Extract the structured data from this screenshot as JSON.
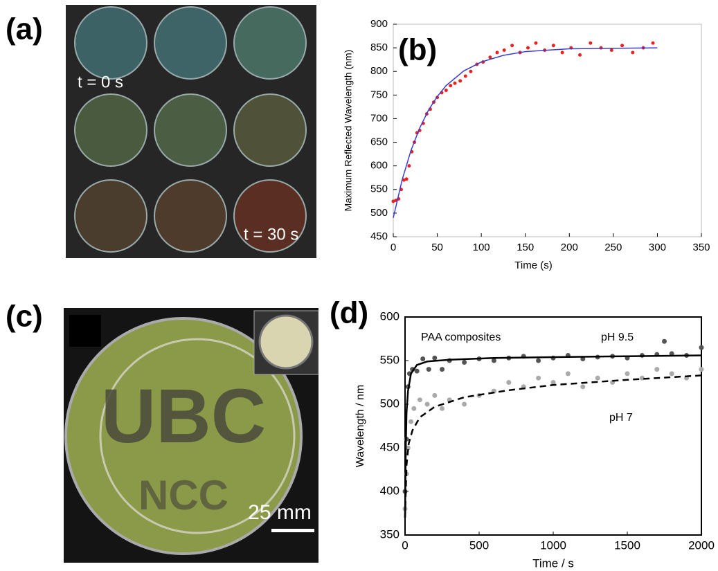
{
  "labels": {
    "a": "(a)",
    "b": "(b)",
    "c": "(c)",
    "d": "(d)"
  },
  "photo_a": {
    "start": "t = 0 s",
    "end": "t = 30 s"
  },
  "photo_c": {
    "line1": "UBC",
    "line2": "NCC",
    "scale": "25 mm"
  },
  "chart_data": [
    {
      "type": "scatter",
      "xlabel": "Time (s)",
      "ylabel": "Maximum Reflected Wavelength (nm)",
      "xlim": [
        0,
        350
      ],
      "xticks": [
        0,
        50,
        100,
        150,
        200,
        250,
        300,
        350
      ],
      "ylim": [
        450,
        900
      ],
      "yticks": [
        450,
        500,
        550,
        600,
        650,
        700,
        750,
        800,
        850,
        900
      ],
      "grid": false,
      "series": [
        {
          "color": "#e8231f",
          "mode": "markers",
          "x": [
            0,
            3,
            6,
            9,
            12,
            15,
            18,
            21,
            24,
            27,
            30,
            34,
            38,
            42,
            46,
            50,
            55,
            60,
            65,
            70,
            76,
            82,
            88,
            95,
            102,
            110,
            118,
            126,
            135,
            144,
            153,
            162,
            172,
            182,
            192,
            202,
            212,
            224,
            236,
            248,
            260,
            272,
            284,
            295
          ],
          "values": [
            525,
            527,
            530,
            550,
            570,
            572,
            600,
            630,
            650,
            670,
            675,
            690,
            710,
            720,
            735,
            745,
            755,
            760,
            770,
            775,
            780,
            790,
            800,
            815,
            820,
            830,
            840,
            845,
            855,
            840,
            850,
            860,
            845,
            855,
            840,
            850,
            835,
            860,
            850,
            845,
            855,
            840,
            850,
            860
          ]
        },
        {
          "color": "#3b3bd4",
          "mode": "line",
          "dash": false,
          "x": [
            0,
            10,
            20,
            30,
            40,
            50,
            60,
            80,
            100,
            125,
            150,
            175,
            200,
            250,
            300
          ],
          "values": [
            490,
            570,
            632,
            680,
            718,
            747,
            770,
            801,
            820,
            834,
            842,
            845,
            848,
            849,
            850
          ]
        }
      ]
    },
    {
      "type": "scatter",
      "xlabel": "Time / s",
      "ylabel": "Wavelength / nm",
      "xlim": [
        0,
        2000
      ],
      "xticks": [
        0,
        500,
        1000,
        1500,
        2000
      ],
      "ylim": [
        350,
        600
      ],
      "yticks": [
        350,
        400,
        450,
        500,
        550,
        600
      ],
      "grid": false,
      "annotations": [
        "PAA composites",
        "pH 9.5",
        "pH 7"
      ],
      "series": [
        {
          "color": "#555555",
          "mode": "markers",
          "x": [
            0,
            10,
            20,
            30,
            50,
            80,
            120,
            160,
            200,
            250,
            300,
            400,
            500,
            600,
            700,
            800,
            900,
            1000,
            1100,
            1200,
            1300,
            1400,
            1500,
            1600,
            1700,
            1750,
            1800,
            1900,
            2000
          ],
          "values": [
            400,
            460,
            520,
            535,
            540,
            538,
            552,
            540,
            553,
            540,
            550,
            548,
            552,
            550,
            553,
            555,
            550,
            553,
            556,
            552,
            554,
            555,
            553,
            556,
            557,
            572,
            558,
            556,
            565
          ]
        },
        {
          "color": "#aaaaaa",
          "mode": "markers",
          "x": [
            0,
            10,
            20,
            40,
            60,
            100,
            150,
            200,
            250,
            300,
            400,
            500,
            600,
            700,
            800,
            900,
            1000,
            1100,
            1200,
            1300,
            1400,
            1500,
            1600,
            1700,
            1800,
            1900,
            2000
          ],
          "values": [
            380,
            420,
            450,
            480,
            495,
            505,
            500,
            510,
            495,
            505,
            500,
            510,
            515,
            525,
            520,
            530,
            525,
            535,
            520,
            530,
            525,
            535,
            530,
            540,
            535,
            530,
            540
          ]
        },
        {
          "color": "#000000",
          "mode": "line",
          "dash": false,
          "x": [
            0,
            5,
            10,
            20,
            40,
            80,
            150,
            300,
            600,
            1000,
            1500,
            2000
          ],
          "values": [
            370,
            450,
            490,
            515,
            535,
            545,
            549,
            551,
            553,
            554,
            555,
            556
          ]
        },
        {
          "color": "#000000",
          "mode": "line",
          "dash": true,
          "x": [
            0,
            10,
            25,
            50,
            100,
            200,
            400,
            700,
            1000,
            1500,
            2000
          ],
          "values": [
            370,
            430,
            455,
            470,
            485,
            497,
            508,
            516,
            522,
            528,
            533
          ]
        }
      ]
    }
  ]
}
